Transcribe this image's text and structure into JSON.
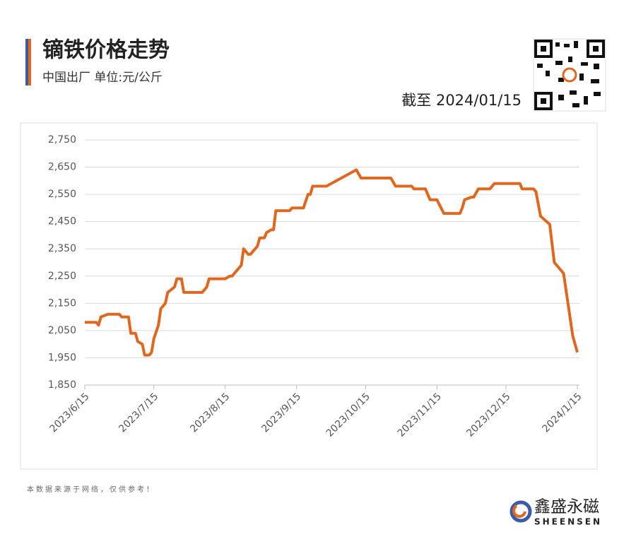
{
  "header": {
    "title": "镝铁价格走势",
    "subtitle": "中国出厂  单位:元/公斤",
    "as_of": "截至 2024/01/15"
  },
  "chart_data": {
    "type": "line",
    "x": [
      "2023/6/15",
      "2023/6/20",
      "2023/6/21",
      "2023/6/22",
      "2023/6/25",
      "2023/6/30",
      "2023/7/1",
      "2023/7/4",
      "2023/7/5",
      "2023/7/7",
      "2023/7/8",
      "2023/7/10",
      "2023/7/11",
      "2023/7/13",
      "2023/7/14",
      "2023/7/15",
      "2023/7/17",
      "2023/7/18",
      "2023/7/20",
      "2023/7/21",
      "2023/7/24",
      "2023/7/25",
      "2023/7/27",
      "2023/7/28",
      "2023/8/5",
      "2023/8/7",
      "2023/8/8",
      "2023/8/15",
      "2023/8/17",
      "2023/8/18",
      "2023/8/22",
      "2023/8/23",
      "2023/8/25",
      "2023/8/26",
      "2023/8/29",
      "2023/8/30",
      "2023/9/1",
      "2023/9/2",
      "2023/9/4",
      "2023/9/5",
      "2023/9/6",
      "2023/9/12",
      "2023/9/13",
      "2023/9/18",
      "2023/9/20",
      "2023/9/21",
      "2023/9/22",
      "2023/9/28",
      "2023/10/11",
      "2023/10/13",
      "2023/10/26",
      "2023/10/28",
      "2023/11/4",
      "2023/11/5",
      "2023/11/10",
      "2023/11/11",
      "2023/11/12",
      "2023/11/15",
      "2023/11/18",
      "2023/11/25",
      "2023/11/26",
      "2023/11/27",
      "2023/11/30",
      "2023/12/1",
      "2023/12/3",
      "2023/12/8",
      "2023/12/10",
      "2023/12/21",
      "2023/12/22",
      "2023/12/27",
      "2023/12/28",
      "2023/12/30",
      "2024/1/3",
      "2024/1/5",
      "2024/1/9",
      "2024/1/13",
      "2024/1/15"
    ],
    "series": [
      {
        "name": "镝铁",
        "color": "#e0671f",
        "values": [
          2080,
          2080,
          2070,
          2100,
          2110,
          2110,
          2100,
          2100,
          2040,
          2040,
          2010,
          2000,
          1960,
          1960,
          1970,
          2020,
          2070,
          2130,
          2150,
          2190,
          2210,
          2240,
          2240,
          2190,
          2190,
          2210,
          2240,
          2240,
          2250,
          2250,
          2290,
          2350,
          2330,
          2330,
          2360,
          2390,
          2390,
          2410,
          2420,
          2420,
          2490,
          2490,
          2500,
          2500,
          2550,
          2550,
          2580,
          2580,
          2640,
          2610,
          2610,
          2580,
          2580,
          2570,
          2570,
          2550,
          2530,
          2530,
          2480,
          2480,
          2500,
          2530,
          2540,
          2540,
          2570,
          2570,
          2590,
          2590,
          2570,
          2570,
          2560,
          2470,
          2440,
          2300,
          2260,
          2030,
          1970
        ]
      }
    ],
    "xlim": [
      "2023/6/15",
      "2024/1/15"
    ],
    "xticks": [
      "2023/6/15",
      "2023/7/15",
      "2023/8/15",
      "2023/9/15",
      "2023/10/15",
      "2023/11/15",
      "2023/12/15",
      "2024/1/15"
    ],
    "ylim": [
      1850,
      2750
    ],
    "yticks": [
      {
        "value": 1850,
        "label": "1,850"
      },
      {
        "value": 1950,
        "label": "1,950"
      },
      {
        "value": 2050,
        "label": "2,050"
      },
      {
        "value": 2150,
        "label": "2,150"
      },
      {
        "value": 2250,
        "label": "2,250"
      },
      {
        "value": 2350,
        "label": "2,350"
      },
      {
        "value": 2450,
        "label": "2,450"
      },
      {
        "value": 2550,
        "label": "2,550"
      },
      {
        "value": 2650,
        "label": "2,650"
      },
      {
        "value": 2750,
        "label": "2,750"
      }
    ],
    "grid": true
  },
  "footer": {
    "note": "本数据来源于网络，仅供参考！",
    "brand": "鑫盛永磁",
    "brand_en": "SHEENSEN"
  }
}
